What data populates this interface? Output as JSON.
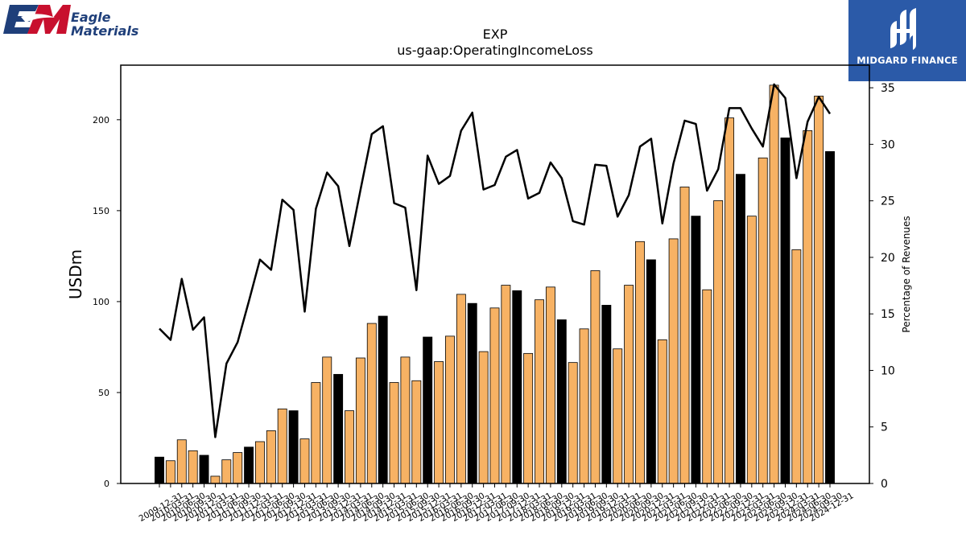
{
  "logos": {
    "left": {
      "line1": "Eagle",
      "line2": "Materials"
    },
    "right": {
      "name": "MIDGARD FINANCE"
    }
  },
  "chart_data": {
    "type": "bar",
    "title": "EXP",
    "subtitle": "us-gaap:OperatingIncomeLoss",
    "ylabel": "USDm",
    "y2label": "Percentage of Revenues",
    "ylim": [
      0,
      230
    ],
    "y2lim": [
      0,
      37
    ],
    "yticks": [
      0,
      50,
      100,
      150,
      200
    ],
    "y2ticks": [
      0,
      5,
      10,
      15,
      20,
      25,
      30,
      35
    ],
    "categories": [
      "2009-12-31",
      "2010-03-31",
      "2010-06-30",
      "2010-09-30",
      "2010-12-31",
      "2011-03-31",
      "2011-06-30",
      "2011-09-30",
      "2011-12-31",
      "2012-03-31",
      "2012-06-30",
      "2012-09-30",
      "2012-12-31",
      "2013-03-31",
      "2013-06-30",
      "2013-09-30",
      "2013-12-31",
      "2014-03-31",
      "2014-06-30",
      "2014-09-30",
      "2014-12-31",
      "2015-03-31",
      "2015-06-30",
      "2015-09-30",
      "2015-12-31",
      "2016-03-31",
      "2016-06-30",
      "2016-09-30",
      "2016-12-31",
      "2017-03-31",
      "2017-06-30",
      "2017-09-30",
      "2017-12-31",
      "2018-03-31",
      "2018-06-30",
      "2018-09-30",
      "2018-12-31",
      "2019-03-31",
      "2019-06-30",
      "2019-09-30",
      "2019-12-31",
      "2020-03-31",
      "2020-06-30",
      "2020-09-30",
      "2020-12-31",
      "2021-03-31",
      "2021-06-30",
      "2021-09-30",
      "2021-12-31",
      "2022-03-31",
      "2022-06-30",
      "2022-09-30",
      "2022-12-31",
      "2023-03-31",
      "2023-06-30",
      "2023-09-30",
      "2023-12-31",
      "2024-03-31",
      "2024-06-30",
      "2024-09-30",
      "2024-12-31"
    ],
    "values": [
      14.5,
      12.5,
      24,
      18,
      15.5,
      4,
      13,
      17,
      20,
      23,
      29,
      41,
      40,
      24.5,
      55.5,
      69.5,
      60,
      40,
      69,
      88,
      92,
      55.5,
      69.5,
      56.5,
      80.5,
      67,
      81,
      104,
      99,
      72.5,
      96.5,
      109,
      106,
      71.5,
      101,
      108,
      90,
      66.5,
      85,
      117,
      98,
      74,
      109,
      133,
      123,
      79,
      134.5,
      163,
      147,
      106.5,
      155.5,
      201,
      170,
      147,
      179,
      219,
      190,
      128.5,
      194,
      213,
      182.5
    ],
    "highlight": [
      true,
      false,
      false,
      false,
      true,
      false,
      false,
      false,
      true,
      false,
      false,
      false,
      true,
      false,
      false,
      false,
      true,
      false,
      false,
      false,
      true,
      false,
      false,
      false,
      true,
      false,
      false,
      false,
      true,
      false,
      false,
      false,
      true,
      false,
      false,
      false,
      true,
      false,
      false,
      false,
      true,
      false,
      false,
      false,
      true,
      false,
      false,
      false,
      true,
      false,
      false,
      false,
      true,
      false,
      false,
      false,
      true,
      false,
      false,
      false,
      true
    ],
    "margin_pct": [
      13.7,
      12.7,
      18.1,
      13.6,
      14.7,
      4.1,
      10.6,
      12.5,
      16.1,
      19.8,
      18.9,
      25.1,
      24.2,
      15.2,
      24.3,
      27.5,
      26.3,
      21,
      26,
      30.9,
      31.6,
      24.8,
      24.4,
      17.1,
      29,
      26.5,
      27.2,
      31.2,
      32.8,
      26,
      26.4,
      28.9,
      29.5,
      25.2,
      25.7,
      28.4,
      27,
      23.2,
      22.9,
      28.2,
      28.1,
      23.6,
      25.5,
      29.8,
      30.5,
      23,
      28.3,
      32.1,
      31.8,
      25.9,
      27.8,
      33.2,
      33.2,
      31.4,
      29.8,
      35.3,
      34.1,
      27,
      32,
      34.2,
      32.7
    ],
    "colors": {
      "bar": "#f7b264",
      "bar_highlight": "#000000",
      "bar_edge": "#000000",
      "line": "#000000"
    },
    "grid": false,
    "legend": "none"
  }
}
